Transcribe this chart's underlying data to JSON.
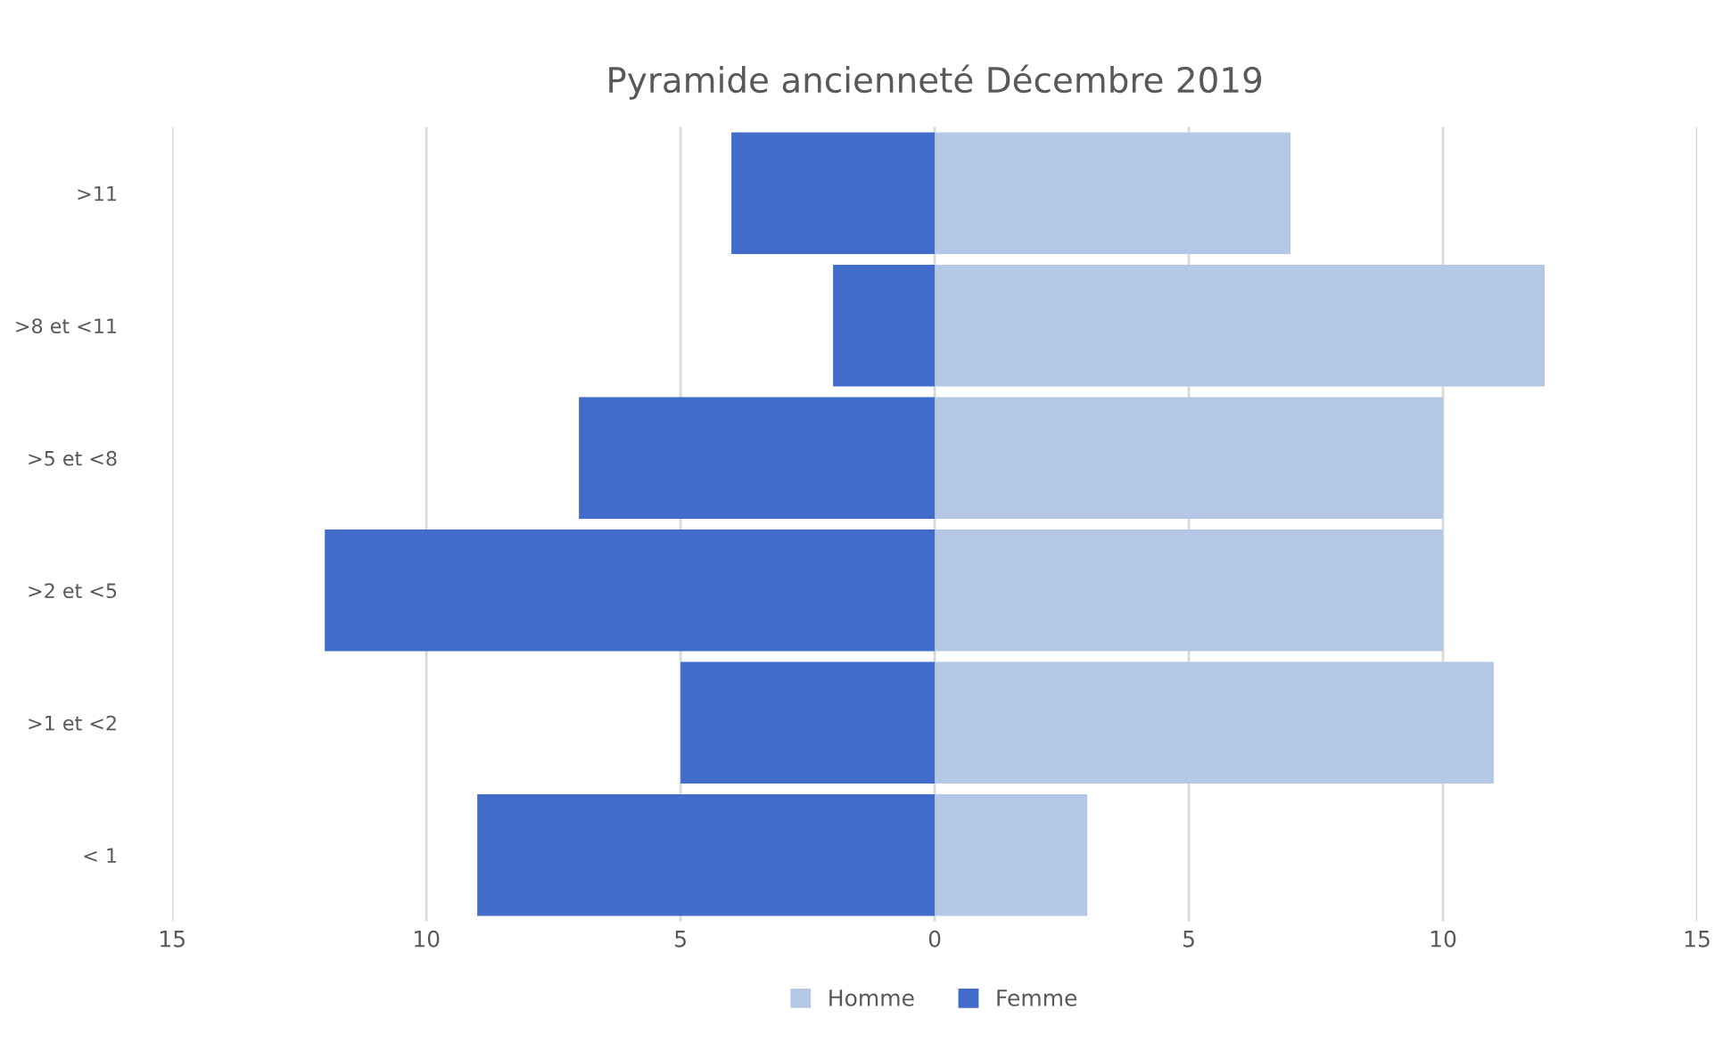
{
  "chart_data": {
    "type": "bar",
    "orientation": "horizontal",
    "title": "Pyramide ancienneté Décembre 2019",
    "categories": [
      ">11",
      ">8 et <11",
      ">5 et <8",
      ">2 et <5",
      ">1 et <2",
      "< 1"
    ],
    "series": [
      {
        "name": "Homme",
        "color": "#b4c7e7",
        "values": [
          7,
          12,
          10,
          10,
          11,
          3
        ]
      },
      {
        "name": "Femme",
        "color": "#416cc9",
        "values": [
          -4,
          -2,
          -7,
          -12,
          -5,
          -9
        ]
      }
    ],
    "xlim": [
      -15,
      15
    ],
    "xticks": [
      {
        "value": -15,
        "label": "15"
      },
      {
        "value": -10,
        "label": "10"
      },
      {
        "value": -5,
        "label": "5"
      },
      0,
      5,
      10,
      15
    ],
    "grid": "x",
    "legend": "bottom",
    "stacked": true
  }
}
